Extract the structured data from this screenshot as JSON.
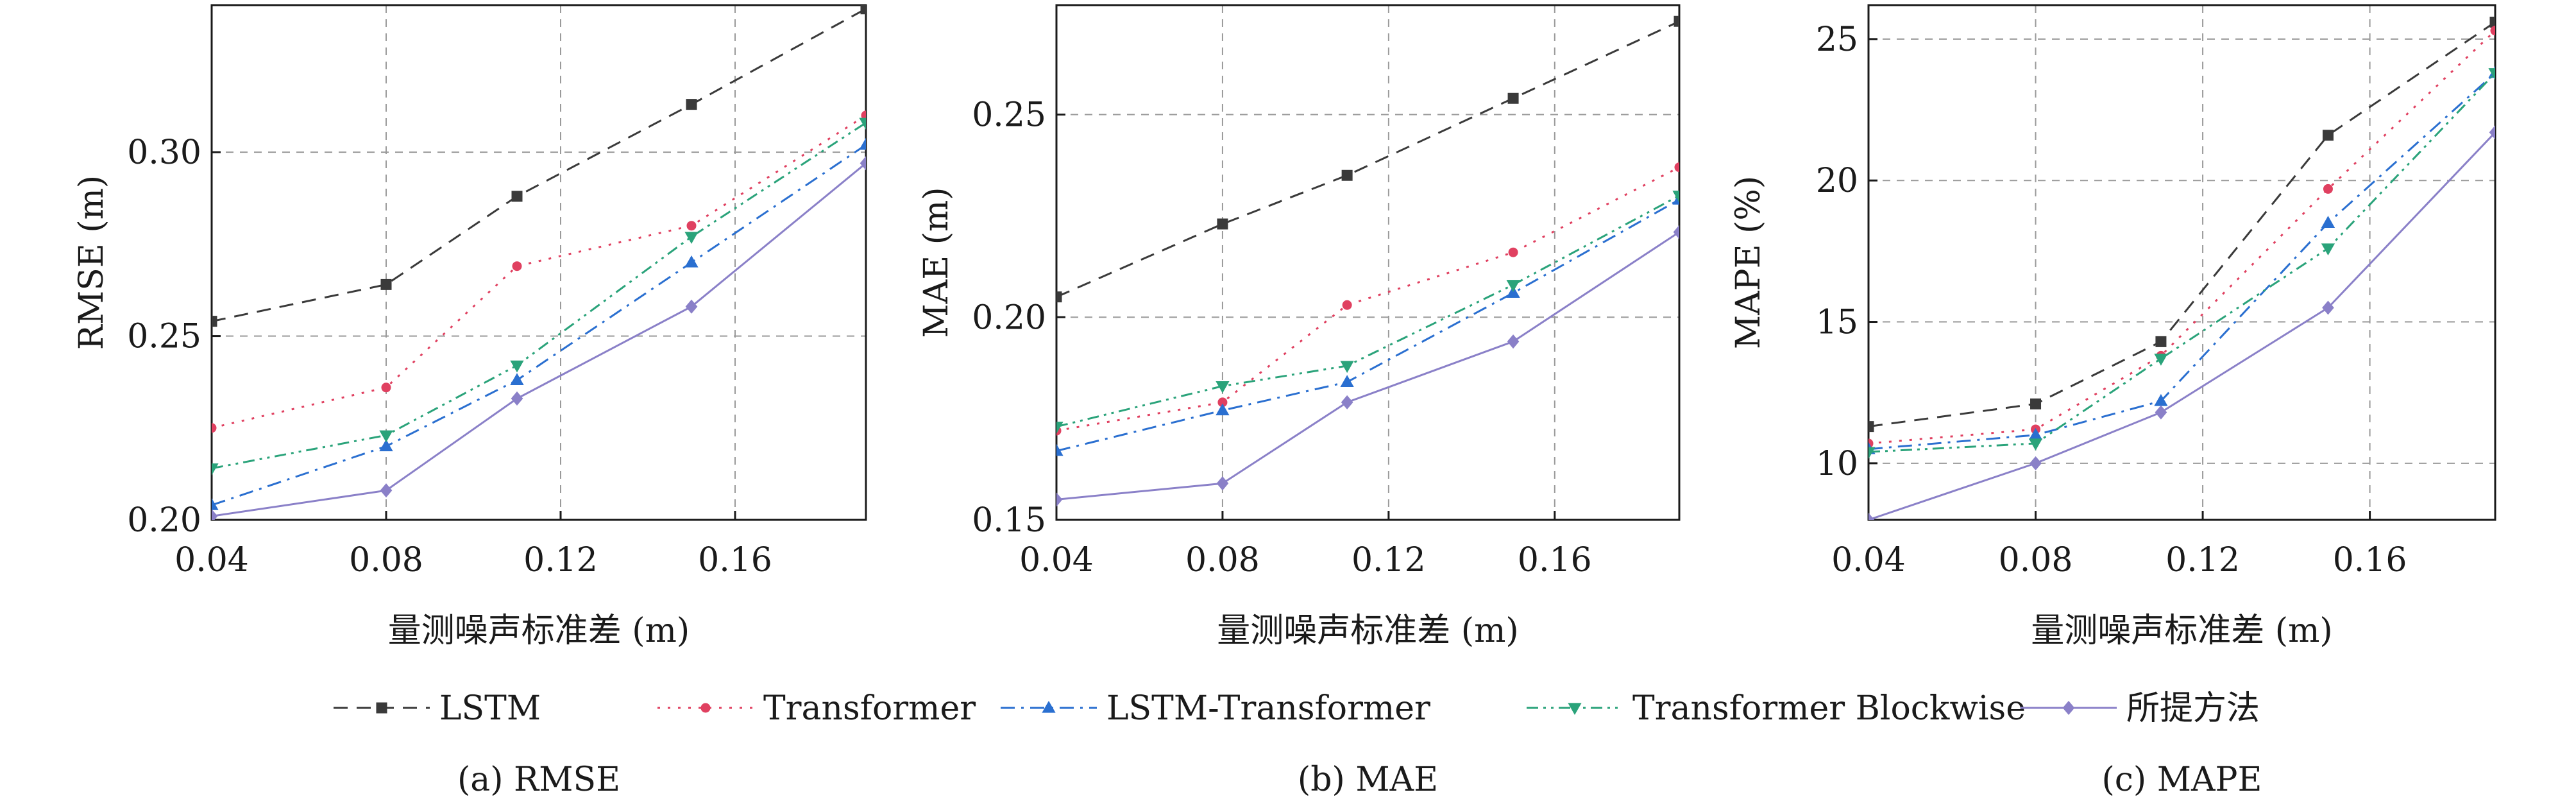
{
  "figure": {
    "xlabel": "量测噪声标准差 (m)",
    "legend_position": "bottom"
  },
  "series_styles": [
    {
      "name": "LSTM",
      "color": "#3a3a3a",
      "dash": "22,14",
      "marker": "square"
    },
    {
      "name": "Transformer",
      "color": "#e04060",
      "dash": "4,12",
      "marker": "circle"
    },
    {
      "name": "LSTM-Transformer",
      "color": "#2a6fd0",
      "dash": "22,10,4,10",
      "marker": "triangle-up"
    },
    {
      "name": "Transformer Blockwise",
      "color": "#2aa37a",
      "dash": "18,8,4,8,4,8",
      "marker": "triangle-down"
    },
    {
      "name": "所提方法",
      "color": "#8a80c8",
      "dash": "",
      "marker": "diamond"
    }
  ],
  "legend": [
    "LSTM",
    "Transformer",
    "LSTM-Transformer",
    "Transformer Blockwise",
    "所提方法"
  ],
  "chart_data": [
    {
      "type": "line",
      "caption": "(a) RMSE",
      "xlabel": "量测噪声标准差 (m)",
      "ylabel": "RMSE (m)",
      "x": [
        0.04,
        0.08,
        0.11,
        0.15,
        0.19
      ],
      "xlim": [
        0.04,
        0.19
      ],
      "ylim": [
        0.2,
        0.34
      ],
      "xticks": [
        "0.04",
        "0.08",
        "0.12",
        "0.16"
      ],
      "yticks": [
        "0.20",
        "0.25",
        "0.30"
      ],
      "grid": true,
      "series": [
        {
          "name": "LSTM",
          "values": [
            0.254,
            0.264,
            0.288,
            0.313,
            0.339
          ]
        },
        {
          "name": "Transformer",
          "values": [
            0.225,
            0.236,
            0.269,
            0.28,
            0.31
          ]
        },
        {
          "name": "LSTM-Transformer",
          "values": [
            0.204,
            0.22,
            0.238,
            0.27,
            0.302
          ]
        },
        {
          "name": "Transformer Blockwise",
          "values": [
            0.214,
            0.223,
            0.242,
            0.277,
            0.308
          ]
        },
        {
          "name": "所提方法",
          "values": [
            0.201,
            0.208,
            0.233,
            0.258,
            0.297
          ]
        }
      ]
    },
    {
      "type": "line",
      "caption": "(b) MAE",
      "xlabel": "量测噪声标准差 (m)",
      "ylabel": "MAE (m)",
      "x": [
        0.04,
        0.08,
        0.11,
        0.15,
        0.19
      ],
      "xlim": [
        0.04,
        0.19
      ],
      "ylim": [
        0.15,
        0.277
      ],
      "xticks": [
        "0.04",
        "0.08",
        "0.12",
        "0.16"
      ],
      "yticks": [
        "0.15",
        "0.20",
        "0.25"
      ],
      "grid": true,
      "series": [
        {
          "name": "LSTM",
          "values": [
            0.205,
            0.223,
            0.235,
            0.254,
            0.273
          ]
        },
        {
          "name": "Transformer",
          "values": [
            0.172,
            0.179,
            0.203,
            0.216,
            0.237
          ]
        },
        {
          "name": "LSTM-Transformer",
          "values": [
            0.167,
            0.177,
            0.184,
            0.206,
            0.229
          ]
        },
        {
          "name": "Transformer Blockwise",
          "values": [
            0.173,
            0.183,
            0.188,
            0.208,
            0.23
          ]
        },
        {
          "name": "所提方法",
          "values": [
            0.155,
            0.159,
            0.179,
            0.194,
            0.221
          ]
        }
      ]
    },
    {
      "type": "line",
      "caption": "(c) MAPE",
      "xlabel": "量测噪声标准差 (m)",
      "ylabel": "MAPE (%)",
      "x": [
        0.04,
        0.08,
        0.11,
        0.15,
        0.19
      ],
      "xlim": [
        0.04,
        0.19
      ],
      "ylim": [
        8,
        26.2
      ],
      "xticks": [
        "0.04",
        "0.08",
        "0.12",
        "0.16"
      ],
      "yticks": [
        "10",
        "15",
        "20",
        "25"
      ],
      "grid": true,
      "series": [
        {
          "name": "LSTM",
          "values": [
            11.3,
            12.1,
            14.3,
            21.6,
            25.6
          ]
        },
        {
          "name": "Transformer",
          "values": [
            10.7,
            11.2,
            13.8,
            19.7,
            25.3
          ]
        },
        {
          "name": "LSTM-Transformer",
          "values": [
            10.5,
            11.0,
            12.2,
            18.5,
            23.8
          ]
        },
        {
          "name": "Transformer Blockwise",
          "values": [
            10.4,
            10.7,
            13.7,
            17.6,
            23.8
          ]
        },
        {
          "name": "所提方法",
          "values": [
            8.0,
            10.0,
            11.8,
            15.5,
            21.7
          ]
        }
      ]
    }
  ]
}
